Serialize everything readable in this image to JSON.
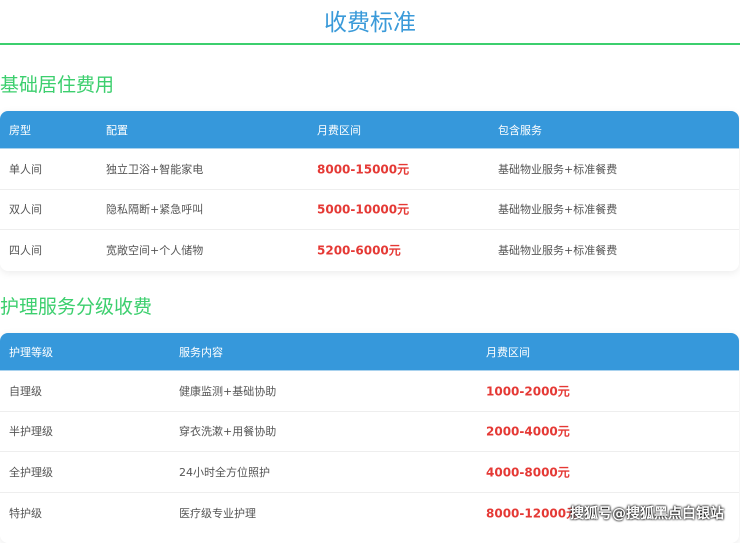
{
  "title": "收费标准",
  "colors": {
    "title": "#3a9ad9",
    "accent_green": "#3ccf6e",
    "header_bg": "#3698db",
    "price": "#e53935"
  },
  "basic": {
    "heading": "基础居住费用",
    "headers": [
      "房型",
      "配置",
      "月费区间",
      "包含服务"
    ],
    "rows": [
      [
        "单人间",
        "独立卫浴+智能家电",
        "8000-15000元",
        "基础物业服务+标准餐费"
      ],
      [
        "双人间",
        "隐私隔断+紧急呼叫",
        "5000-10000元",
        "基础物业服务+标准餐费"
      ],
      [
        "四人间",
        "宽敞空间+个人储物",
        "5200-6000元",
        "基础物业服务+标准餐费"
      ]
    ]
  },
  "care": {
    "heading": "护理服务分级收费",
    "headers": [
      "护理等级",
      "服务内容",
      "月费区间"
    ],
    "rows": [
      [
        "自理级",
        "健康监测+基础协助",
        "1000-2000元"
      ],
      [
        "半护理级",
        "穿衣洗漱+用餐协助",
        "2000-4000元"
      ],
      [
        "全护理级",
        "24小时全方位照护",
        "4000-8000元"
      ],
      [
        "特护级",
        "医疗级专业护理",
        "8000-12000元"
      ]
    ]
  },
  "watermark": "搜狐号@搜狐黑点白银站"
}
